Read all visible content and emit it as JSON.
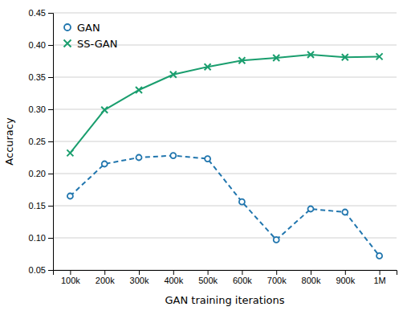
{
  "chart_data": {
    "type": "line",
    "x_label": "GAN training iterations",
    "y_label": "Accuracy",
    "categories": [
      "100k",
      "200k",
      "300k",
      "400k",
      "500k",
      "600k",
      "700k",
      "800k",
      "900k",
      "1M"
    ],
    "series": [
      {
        "name": "GAN",
        "color": "#2176ae",
        "marker": "circle",
        "line_style": "dashed",
        "values": [
          0.165,
          0.215,
          0.225,
          0.228,
          0.223,
          0.156,
          0.097,
          0.145,
          0.14,
          0.072
        ]
      },
      {
        "name": "SS-GAN",
        "color": "#1a9e6e",
        "marker": "x",
        "line_style": "solid",
        "values": [
          0.232,
          0.299,
          0.33,
          0.354,
          0.366,
          0.376,
          0.38,
          0.385,
          0.381,
          0.382
        ]
      }
    ],
    "ylim": [
      0.05,
      0.45
    ],
    "yticks": [
      0.05,
      {
        "value": 0.1,
        "label": "0.10"
      },
      0.15,
      {
        "value": 0.2,
        "label": "0.20"
      },
      0.25,
      {
        "value": 0.3,
        "label": "0.30"
      },
      0.35,
      {
        "value": 0.4,
        "label": "0.40"
      },
      0.45
    ],
    "grid": true,
    "legend": "upper left"
  }
}
